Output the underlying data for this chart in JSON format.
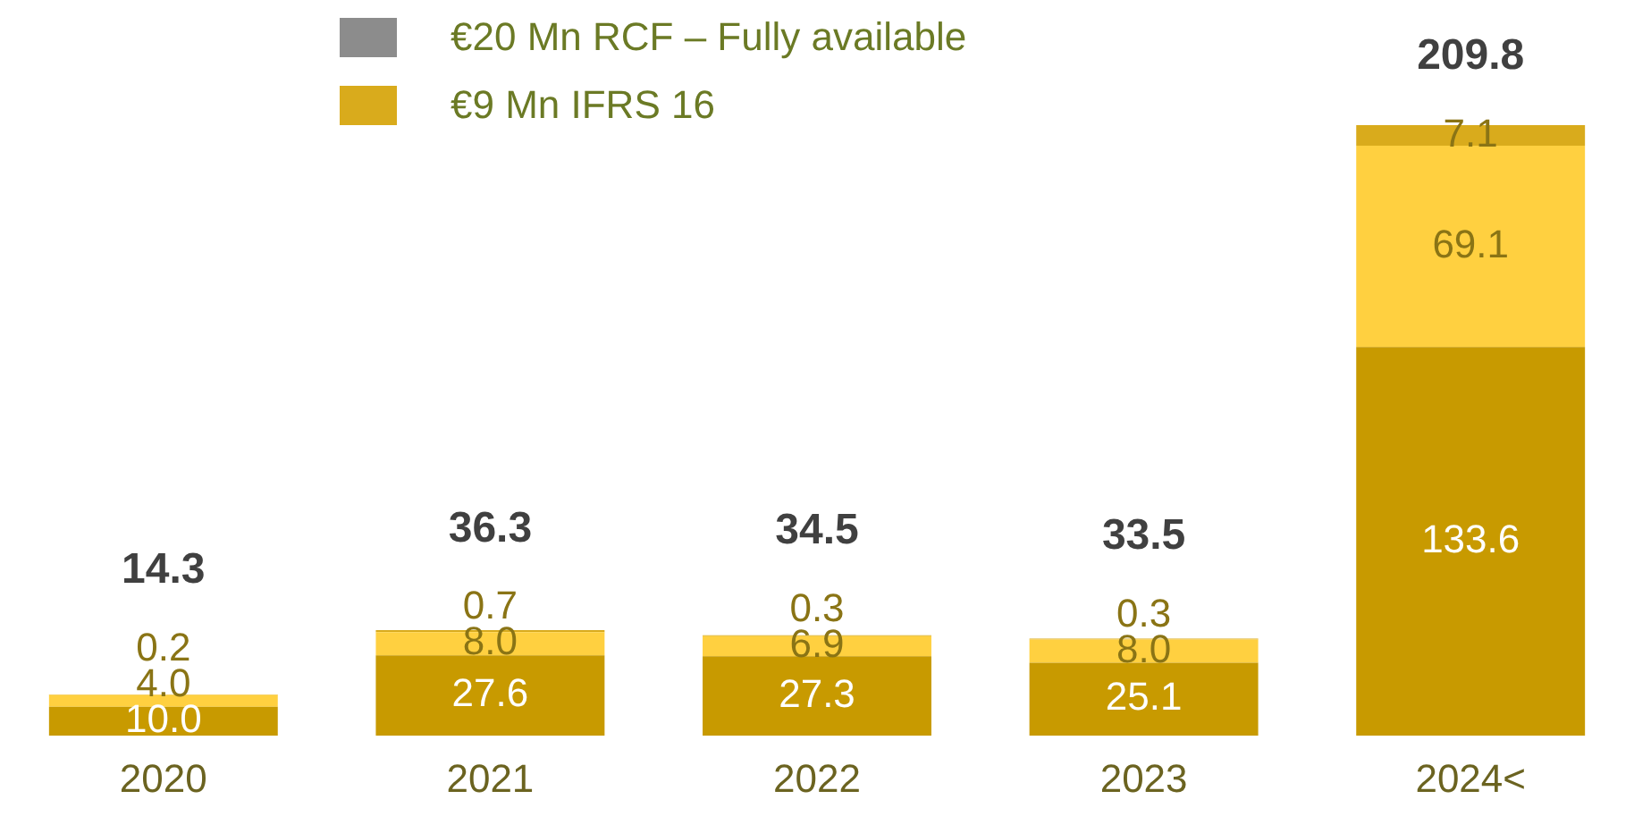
{
  "chart_data": {
    "type": "bar",
    "stacked": true,
    "legend": "top left",
    "grid": false,
    "categories": [
      "2020",
      "2021",
      "2022",
      "2023",
      "2024<"
    ],
    "series": [
      {
        "name": "€20 Mn RCF – Fully available",
        "color": "#8c8c8c",
        "values": [
          null,
          null,
          null,
          null,
          null
        ]
      },
      {
        "color": "#c89a00",
        "values": [
          10.0,
          27.6,
          27.3,
          25.1,
          133.6
        ],
        "value_labels": [
          "10.0",
          "27.6",
          "27.3",
          "25.1",
          "133.6"
        ]
      },
      {
        "color": "#ffd040",
        "values": [
          4.0,
          8.0,
          6.9,
          8.0,
          69.1
        ],
        "value_labels": [
          "4.0",
          "8.0",
          "6.9",
          "8.0",
          "69.1"
        ]
      },
      {
        "name": "€9 Mn IFRS 16",
        "color": "#d9ab1c",
        "values": [
          0.2,
          0.7,
          0.3,
          0.3,
          7.1
        ],
        "value_labels": [
          "0.2",
          "0.7",
          "0.3",
          "0.3",
          "7.1"
        ]
      }
    ],
    "totals": [
      "14.3",
      "36.3",
      "34.5",
      "33.5",
      "209.8"
    ]
  }
}
